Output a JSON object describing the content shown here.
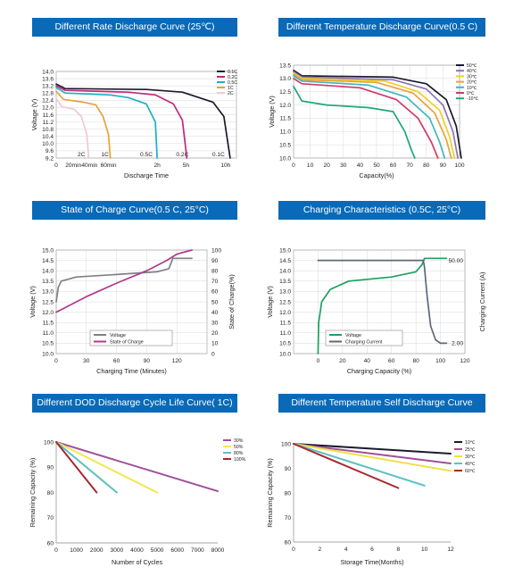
{
  "colors": {
    "banner": "#0a6ab7"
  },
  "charts": [
    {
      "id": "c1",
      "title": "Different Rate Discharge Curve (25℃)",
      "chart_data": {
        "type": "line",
        "xlabel": "Discharge Time",
        "ylabel": "Voltage (V)",
        "ylim": [
          9.2,
          14.0
        ],
        "y_ticks": [
          "14.0",
          "13.6",
          "13.2",
          "12.8",
          "12.4",
          "12.0",
          "11.6",
          "11.2",
          "10.8",
          "10.4",
          "10.0",
          "9.6",
          "9.2"
        ],
        "x_ticks": [
          "0",
          "20min",
          "40min",
          "60min",
          "2h",
          "5h",
          "10h"
        ],
        "annotations": [
          "2C",
          "1C",
          "0.5C",
          "0.2C",
          "0.1C"
        ],
        "grid": true,
        "legend": "top-right",
        "series": [
          {
            "name": "0.1C",
            "color": "#1a1a2e",
            "points": [
              [
                0,
                13.3
              ],
              [
                0.05,
                13.05
              ],
              [
                0.5,
                13.0
              ],
              [
                0.7,
                12.85
              ],
              [
                0.87,
                12.3
              ],
              [
                0.93,
                11.5
              ],
              [
                0.965,
                9.2
              ]
            ]
          },
          {
            "name": "0.2C",
            "color": "#c0287a",
            "points": [
              [
                0,
                13.2
              ],
              [
                0.05,
                12.95
              ],
              [
                0.4,
                12.85
              ],
              [
                0.55,
                12.7
              ],
              [
                0.65,
                12.2
              ],
              [
                0.7,
                11.3
              ],
              [
                0.725,
                9.2
              ]
            ]
          },
          {
            "name": "0.5C",
            "color": "#1ab2c0",
            "points": [
              [
                0,
                13.1
              ],
              [
                0.05,
                12.8
              ],
              [
                0.3,
                12.7
              ],
              [
                0.4,
                12.55
              ],
              [
                0.5,
                12.2
              ],
              [
                0.55,
                11.2
              ],
              [
                0.56,
                9.2
              ]
            ]
          },
          {
            "name": "1C",
            "color": "#e8a23a",
            "points": [
              [
                0,
                12.9
              ],
              [
                0.04,
                12.45
              ],
              [
                0.15,
                12.3
              ],
              [
                0.22,
                12.15
              ],
              [
                0.26,
                11.5
              ],
              [
                0.29,
                10.5
              ],
              [
                0.3,
                9.2
              ]
            ]
          },
          {
            "name": "2C",
            "color": "#f3c7d2",
            "points": [
              [
                0,
                12.5
              ],
              [
                0.03,
                12.05
              ],
              [
                0.1,
                11.9
              ],
              [
                0.14,
                11.5
              ],
              [
                0.17,
                10.5
              ],
              [
                0.18,
                9.2
              ]
            ]
          }
        ]
      }
    },
    {
      "id": "c2",
      "title": "Different Temperature Discharge Curve(0.5 C)",
      "chart_data": {
        "type": "line",
        "xlabel": "Capacity(%)",
        "ylabel": "Voltage (V)",
        "xlim": [
          0,
          100
        ],
        "ylim": [
          10.0,
          13.5
        ],
        "x_ticks": [
          "0",
          "10",
          "20",
          "30",
          "40",
          "50",
          "60",
          "70",
          "80",
          "90",
          "100"
        ],
        "y_ticks": [
          "13.5",
          "13.0",
          "12.5",
          "12.0",
          "11.5",
          "11.0",
          "10.5",
          "10.0"
        ],
        "grid": true,
        "legend": "top-right",
        "series": [
          {
            "name": "50℃",
            "color": "#1a1a2e",
            "points": [
              [
                0,
                13.3
              ],
              [
                5,
                13.1
              ],
              [
                60,
                13.05
              ],
              [
                80,
                12.8
              ],
              [
                92,
                12.2
              ],
              [
                98,
                11.2
              ],
              [
                101,
                10.0
              ]
            ]
          },
          {
            "name": "40℃",
            "color": "#8a74b8",
            "points": [
              [
                0,
                13.25
              ],
              [
                5,
                13.05
              ],
              [
                60,
                12.95
              ],
              [
                80,
                12.6
              ],
              [
                90,
                12.0
              ],
              [
                96,
                11.0
              ],
              [
                99,
                10.0
              ]
            ]
          },
          {
            "name": "30℃",
            "color": "#f0d020",
            "points": [
              [
                0,
                13.2
              ],
              [
                5,
                13.0
              ],
              [
                55,
                12.9
              ],
              [
                75,
                12.5
              ],
              [
                88,
                11.8
              ],
              [
                94,
                10.8
              ],
              [
                97,
                10.0
              ]
            ]
          },
          {
            "name": "20℃",
            "color": "#e8a23a",
            "points": [
              [
                0,
                13.15
              ],
              [
                5,
                12.95
              ],
              [
                50,
                12.85
              ],
              [
                72,
                12.45
              ],
              [
                85,
                11.7
              ],
              [
                92,
                10.7
              ],
              [
                95,
                10.0
              ]
            ]
          },
          {
            "name": "10℃",
            "color": "#3fb6c4",
            "points": [
              [
                0,
                13.1
              ],
              [
                5,
                12.9
              ],
              [
                45,
                12.75
              ],
              [
                68,
                12.3
              ],
              [
                82,
                11.5
              ],
              [
                88,
                10.6
              ],
              [
                91,
                10.0
              ]
            ]
          },
          {
            "name": "0℃",
            "color": "#d23a6a",
            "points": [
              [
                0,
                13.0
              ],
              [
                5,
                12.8
              ],
              [
                40,
                12.65
              ],
              [
                62,
                12.2
              ],
              [
                75,
                11.5
              ],
              [
                83,
                10.6
              ],
              [
                87,
                10.0
              ]
            ]
          },
          {
            "name": "-10℃",
            "color": "#1ea87a",
            "points": [
              [
                0,
                12.7
              ],
              [
                5,
                12.15
              ],
              [
                20,
                12.0
              ],
              [
                45,
                11.9
              ],
              [
                60,
                11.75
              ],
              [
                67,
                11.0
              ],
              [
                71,
                10.3
              ],
              [
                73,
                10.0
              ]
            ]
          }
        ]
      }
    },
    {
      "id": "c3",
      "title": "State of Charge Curve(0.5 C, 25°C)",
      "chart_data": {
        "type": "line",
        "xlabel": "Charging Time (Minutes)",
        "ylabel": "Voltage (V)",
        "y2label": "State of Charge(%)",
        "xlim": [
          0,
          150
        ],
        "ylim": [
          10.0,
          15.0
        ],
        "y2lim": [
          0,
          100
        ],
        "x_ticks": [
          "0",
          "30",
          "60",
          "90",
          "120"
        ],
        "y_ticks": [
          "15.0",
          "14.5",
          "14.0",
          "13.5",
          "13.0",
          "12.5",
          "12.0",
          "11.5",
          "11.0",
          "10.5",
          "10.0"
        ],
        "y2_ticks": [
          "100",
          "90",
          "80",
          "70",
          "60",
          "50",
          "40",
          "30",
          "20",
          "10",
          "0"
        ],
        "legend": "bottom-center",
        "series": [
          {
            "name": "Voltage",
            "color": "#808088",
            "axis": "left",
            "points": [
              [
                0,
                12.5
              ],
              [
                2,
                13.2
              ],
              [
                5,
                13.5
              ],
              [
                20,
                13.7
              ],
              [
                60,
                13.82
              ],
              [
                100,
                13.95
              ],
              [
                112,
                14.1
              ],
              [
                116,
                14.6
              ],
              [
                135,
                14.6
              ]
            ]
          },
          {
            "name": "State of Charge",
            "color": "#b03a8e",
            "axis": "right",
            "points": [
              [
                0,
                40
              ],
              [
                30,
                55
              ],
              [
                60,
                68
              ],
              [
                90,
                80
              ],
              [
                110,
                90
              ],
              [
                120,
                96
              ],
              [
                135,
                100
              ]
            ]
          }
        ]
      }
    },
    {
      "id": "c4",
      "title": "Charging Characteristics  (0.5C, 25°C)",
      "chart_data": {
        "type": "line",
        "xlabel": "Charging Capacity (%)",
        "ylabel": "Voltage (V)",
        "y2label": "Charging Current (A)",
        "xlim": [
          -20,
          120
        ],
        "ylim": [
          10.0,
          15.0
        ],
        "x_ticks": [
          "0",
          "20",
          "40",
          "60",
          "80",
          "100",
          "120"
        ],
        "y_ticks": [
          "15.0",
          "14.5",
          "14.0",
          "13.5",
          "13.0",
          "12.5",
          "12.0",
          "11.5",
          "11.0",
          "10.5",
          "10.0"
        ],
        "y2_ticks": [
          "50.00",
          "2.00"
        ],
        "legend": "bottom-left",
        "series": [
          {
            "name": "Voltage",
            "color": "#1ea060",
            "axis": "left",
            "points": [
              [
                0,
                10.0
              ],
              [
                0.5,
                11.5
              ],
              [
                3,
                12.5
              ],
              [
                10,
                13.1
              ],
              [
                25,
                13.5
              ],
              [
                60,
                13.7
              ],
              [
                80,
                13.95
              ],
              [
                85,
                14.3
              ],
              [
                87,
                14.6
              ],
              [
                105,
                14.6
              ]
            ]
          },
          {
            "name": "Charging Current",
            "color": "#5a6a7a",
            "axis": "right",
            "points": [
              [
                0,
                50
              ],
              [
                86,
                50
              ],
              [
                87,
                46
              ],
              [
                89,
                30
              ],
              [
                92,
                12
              ],
              [
                96,
                4
              ],
              [
                100,
                2
              ],
              [
                105,
                2
              ]
            ]
          }
        ]
      }
    },
    {
      "id": "c5",
      "title": "Different DOD Discharge Cycle Life Curve(    1C)",
      "chart_data": {
        "type": "line",
        "xlabel": "Number of Cycles",
        "ylabel": "Remaining Capacity (%)",
        "xlim": [
          0,
          8000
        ],
        "ylim": [
          60,
          100
        ],
        "x_ticks": [
          "0",
          "1000",
          "2000",
          "3000",
          "4000",
          "5000",
          "6000",
          "7000",
          "8000"
        ],
        "y_ticks": [
          "100",
          "90",
          "80",
          "70",
          "60"
        ],
        "legend": "top-right",
        "series": [
          {
            "name": "30%",
            "color": "#a0509a",
            "points": [
              [
                0,
                100
              ],
              [
                8000,
                80.5
              ]
            ]
          },
          {
            "name": "50%",
            "color": "#f2e650",
            "points": [
              [
                0,
                100
              ],
              [
                5000,
                80
              ]
            ]
          },
          {
            "name": "80%",
            "color": "#5cc0c0",
            "points": [
              [
                0,
                100
              ],
              [
                3000,
                80
              ]
            ]
          },
          {
            "name": "100%",
            "color": "#a82830",
            "points": [
              [
                0,
                100
              ],
              [
                2000,
                80
              ]
            ]
          }
        ]
      }
    },
    {
      "id": "c6",
      "title": "Different Temperature Self Discharge  Curve",
      "chart_data": {
        "type": "line",
        "xlabel": "Storage Time(Months)",
        "ylabel": "Remaining Capacity (%)",
        "xlim": [
          0,
          12
        ],
        "ylim": [
          60,
          100
        ],
        "x_ticks": [
          "0",
          "2",
          "4",
          "6",
          "8",
          "10",
          "12"
        ],
        "y_ticks": [
          "100",
          "90",
          "80",
          "70",
          "60"
        ],
        "legend": "top-right",
        "series": [
          {
            "name": "10℃",
            "color": "#1a1a2e",
            "points": [
              [
                0,
                100
              ],
              [
                12,
                96
              ]
            ]
          },
          {
            "name": "25℃",
            "color": "#a0509a",
            "points": [
              [
                0,
                100
              ],
              [
                12,
                92
              ]
            ]
          },
          {
            "name": "30℃",
            "color": "#f0e040",
            "points": [
              [
                0,
                100
              ],
              [
                12,
                89
              ]
            ]
          },
          {
            "name": "40℃",
            "color": "#5cc0c0",
            "points": [
              [
                0,
                100
              ],
              [
                10,
                83
              ]
            ]
          },
          {
            "name": "60℃",
            "color": "#a82830",
            "points": [
              [
                0,
                100
              ],
              [
                8,
                82
              ]
            ]
          }
        ]
      }
    }
  ]
}
